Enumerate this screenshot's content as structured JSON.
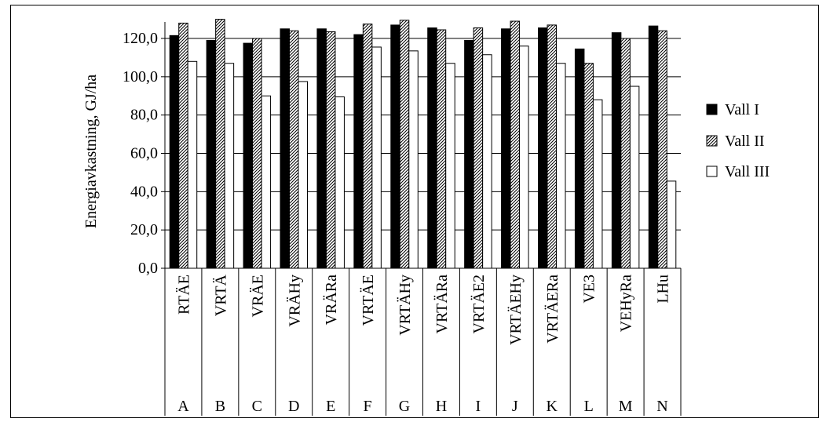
{
  "chart_data": {
    "type": "bar",
    "ylabel": "Energiavkastning, GJ/ha",
    "ylim": [
      0,
      130
    ],
    "yticks": [
      0,
      20,
      40,
      60,
      80,
      100,
      120
    ],
    "ytick_labels": [
      "0,0",
      "20,0",
      "40,0",
      "60,0",
      "80,0",
      "100,0",
      "120,0"
    ],
    "grid": true,
    "legend_position": "right",
    "categories": [
      "RTÄE",
      "VRTÄ",
      "VRÄE",
      "VRÄHy",
      "VRÄRa",
      "VRTÄE",
      "VRTÄHy",
      "VRTÄRa",
      "VRTÄE2",
      "VRTÄEHy",
      "VRTÄERa",
      "VE3",
      "VEHyRa",
      "LHu"
    ],
    "group_labels": [
      "A",
      "B",
      "C",
      "D",
      "E",
      "F",
      "G",
      "H",
      "I",
      "J",
      "K",
      "L",
      "M",
      "N"
    ],
    "series": [
      {
        "name": "Vall I",
        "fill": "solid",
        "color": "#000000",
        "values": [
          121.5,
          119,
          117.5,
          125,
          125,
          122,
          127,
          125.5,
          119,
          125,
          125.5,
          114.5,
          123,
          126.5
        ]
      },
      {
        "name": "Vall II",
        "fill": "hatched",
        "color": "#888888",
        "values": [
          128,
          130,
          120,
          124,
          123.5,
          127.5,
          129.5,
          124.5,
          125.5,
          129,
          127,
          107,
          120,
          124
        ]
      },
      {
        "name": "Vall III",
        "fill": "white",
        "color": "#ffffff",
        "values": [
          108,
          107,
          90,
          97.5,
          89.5,
          115.5,
          113.5,
          107,
          111.5,
          116,
          107,
          88,
          95,
          45.5
        ]
      }
    ]
  }
}
